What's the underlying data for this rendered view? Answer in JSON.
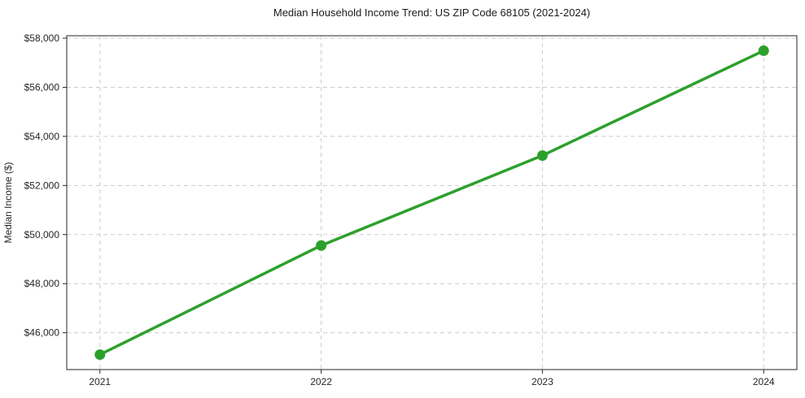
{
  "chart_data": {
    "type": "line",
    "title": "Median Household Income Trend: US ZIP Code 68105 (2021-2024)",
    "xlabel": "",
    "ylabel": "Median Income ($)",
    "x": [
      2021,
      2022,
      2023,
      2024
    ],
    "x_tick_labels": [
      "2021",
      "2022",
      "2023",
      "2024"
    ],
    "series": [
      {
        "name": "Median Household Income",
        "values": [
          45110,
          49555,
          53220,
          57490
        ]
      }
    ],
    "y_ticks": [
      46000,
      48000,
      50000,
      52000,
      54000,
      56000,
      58000
    ],
    "y_tick_labels": [
      "$46,000",
      "$48,000",
      "$50,000",
      "$52,000",
      "$54,000",
      "$56,000",
      "$58,000"
    ],
    "y_tick_prefix": "$",
    "xlim": [
      2020.85,
      2024.15
    ],
    "ylim": [
      44500,
      58100
    ],
    "grid": true,
    "grid_style": "dashed",
    "legend": false,
    "colors": {
      "line": "#2ca02c",
      "marker": "#2ca02c",
      "grid": "#cccccc",
      "axis": "#262626",
      "background": "#ffffff"
    }
  }
}
